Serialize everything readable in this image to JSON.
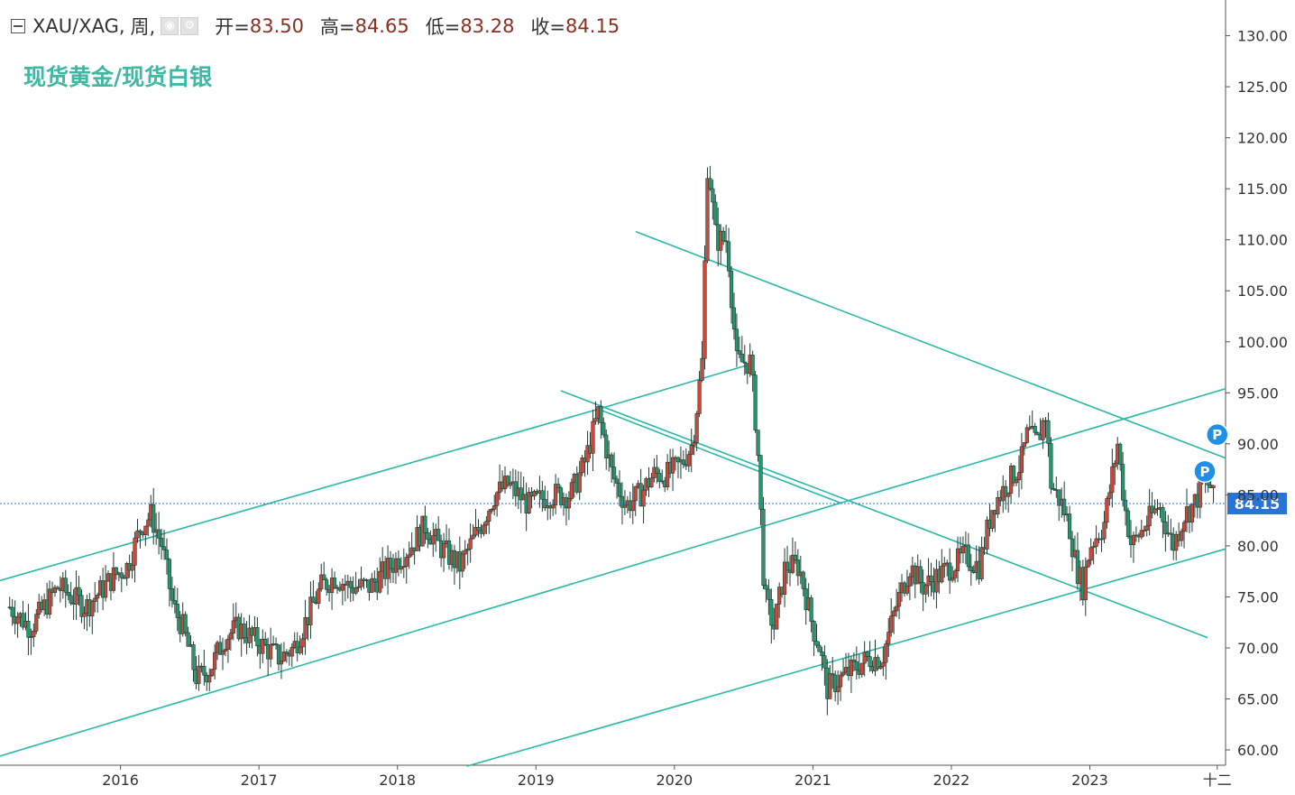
{
  "header": {
    "symbol": "XAU/XAG",
    "separator": ",",
    "interval": "周,",
    "open_label": "开=",
    "open_value": "83.50",
    "high_label": "高=",
    "high_value": "84.65",
    "low_label": "低=",
    "low_value": "83.28",
    "close_label": "收=",
    "close_value": "84.15"
  },
  "colors": {
    "up": "#d0473a",
    "down": "#27966e",
    "trendline": "#2ab8a8",
    "price_marker": "#2773d6",
    "pin": "#1f8fe8",
    "title": "#3fb8a4"
  },
  "chart_data": {
    "type": "candlestick",
    "title": "现货黄金/现货白银",
    "interval": "weekly",
    "current_price": "84.15",
    "y_axis": {
      "ticks": [
        "130.00",
        "125.00",
        "120.00",
        "115.00",
        "110.00",
        "105.00",
        "100.00",
        "95.00",
        "90.00",
        "85.00",
        "80.00",
        "75.00",
        "70.00",
        "65.00",
        "60.00"
      ],
      "ylim": [
        58.5,
        133.5
      ]
    },
    "x_axis": {
      "ticks": [
        "2016",
        "2017",
        "2018",
        "2019",
        "2020",
        "2021",
        "2022",
        "2023",
        "十二"
      ],
      "xlim": [
        2015.13,
        2023.98
      ]
    },
    "series": [
      {
        "values": [
          [
            2015.2,
            74
          ],
          [
            2015.35,
            72
          ],
          [
            2015.55,
            76
          ],
          [
            2015.75,
            74
          ],
          [
            2015.95,
            77
          ],
          [
            2016.05,
            78
          ],
          [
            2016.15,
            82
          ],
          [
            2016.22,
            83
          ],
          [
            2016.3,
            80
          ],
          [
            2016.38,
            74
          ],
          [
            2016.45,
            72
          ],
          [
            2016.55,
            67
          ],
          [
            2016.65,
            68
          ],
          [
            2016.75,
            71
          ],
          [
            2016.85,
            72
          ],
          [
            2016.95,
            71
          ],
          [
            2017.05,
            70
          ],
          [
            2017.15,
            69
          ],
          [
            2017.25,
            70
          ],
          [
            2017.35,
            73
          ],
          [
            2017.45,
            76
          ],
          [
            2017.55,
            77
          ],
          [
            2017.65,
            76
          ],
          [
            2017.8,
            76
          ],
          [
            2017.95,
            78
          ],
          [
            2018.1,
            80
          ],
          [
            2018.2,
            82
          ],
          [
            2018.3,
            80
          ],
          [
            2018.45,
            78
          ],
          [
            2018.6,
            82
          ],
          [
            2018.7,
            85
          ],
          [
            2018.8,
            86
          ],
          [
            2018.95,
            84
          ],
          [
            2019.1,
            85
          ],
          [
            2019.25,
            85
          ],
          [
            2019.35,
            88
          ],
          [
            2019.45,
            93
          ],
          [
            2019.55,
            87
          ],
          [
            2019.65,
            84
          ],
          [
            2019.75,
            85
          ],
          [
            2019.85,
            87
          ],
          [
            2019.95,
            87
          ],
          [
            2020.05,
            88
          ],
          [
            2020.13,
            90
          ],
          [
            2020.2,
            98
          ],
          [
            2020.24,
            118
          ],
          [
            2020.3,
            110
          ],
          [
            2020.38,
            110
          ],
          [
            2020.45,
            98
          ],
          [
            2020.55,
            98
          ],
          [
            2020.6,
            90
          ],
          [
            2020.65,
            75
          ],
          [
            2020.72,
            72
          ],
          [
            2020.8,
            78
          ],
          [
            2020.9,
            78
          ],
          [
            2021.0,
            72
          ],
          [
            2021.05,
            70
          ],
          [
            2021.1,
            66
          ],
          [
            2021.2,
            67
          ],
          [
            2021.3,
            68
          ],
          [
            2021.4,
            69
          ],
          [
            2021.5,
            69
          ],
          [
            2021.6,
            74
          ],
          [
            2021.7,
            78
          ],
          [
            2021.8,
            76
          ],
          [
            2021.9,
            77
          ],
          [
            2022.0,
            78
          ],
          [
            2022.1,
            79
          ],
          [
            2022.2,
            78
          ],
          [
            2022.3,
            84
          ],
          [
            2022.4,
            86
          ],
          [
            2022.5,
            88
          ],
          [
            2022.55,
            91
          ],
          [
            2022.62,
            90
          ],
          [
            2022.68,
            93
          ],
          [
            2022.72,
            86
          ],
          [
            2022.8,
            84
          ],
          [
            2022.85,
            82
          ],
          [
            2022.9,
            78
          ],
          [
            2022.95,
            76
          ],
          [
            2023.0,
            80
          ],
          [
            2023.1,
            82
          ],
          [
            2023.15,
            86
          ],
          [
            2023.2,
            90
          ],
          [
            2023.25,
            84
          ],
          [
            2023.3,
            80
          ],
          [
            2023.4,
            82
          ],
          [
            2023.5,
            84
          ],
          [
            2023.6,
            80
          ],
          [
            2023.68,
            83
          ],
          [
            2023.75,
            84
          ],
          [
            2023.82,
            86
          ],
          [
            2023.87,
            86
          ],
          [
            2023.9,
            84.15
          ]
        ]
      }
    ],
    "trendlines": [
      [
        [
          2015.13,
          76.6
        ],
        [
          2019.45,
          93.4
        ]
      ],
      [
        [
          2019.45,
          93.4
        ],
        [
          2021.2,
          84.2
        ]
      ],
      [
        [
          2019.45,
          93.4
        ],
        [
          2020.55,
          97.8
        ]
      ],
      [
        [
          2015.13,
          59.4
        ],
        [
          2021.2,
          84.2
        ]
      ],
      [
        [
          2021.2,
          84.2
        ],
        [
          2023.98,
          95.4
        ]
      ],
      [
        [
          2018.5,
          58.4
        ],
        [
          2023.98,
          79.7
        ]
      ],
      [
        [
          2019.18,
          95.2
        ],
        [
          2023.85,
          71.0
        ]
      ],
      [
        [
          2019.72,
          110.8
        ],
        [
          2023.98,
          88.6
        ]
      ]
    ],
    "markers": [
      {
        "label": "P",
        "x": 2023.83,
        "y": 87.3
      },
      {
        "label": "P",
        "x": 2023.92,
        "y": 90.9
      }
    ]
  }
}
